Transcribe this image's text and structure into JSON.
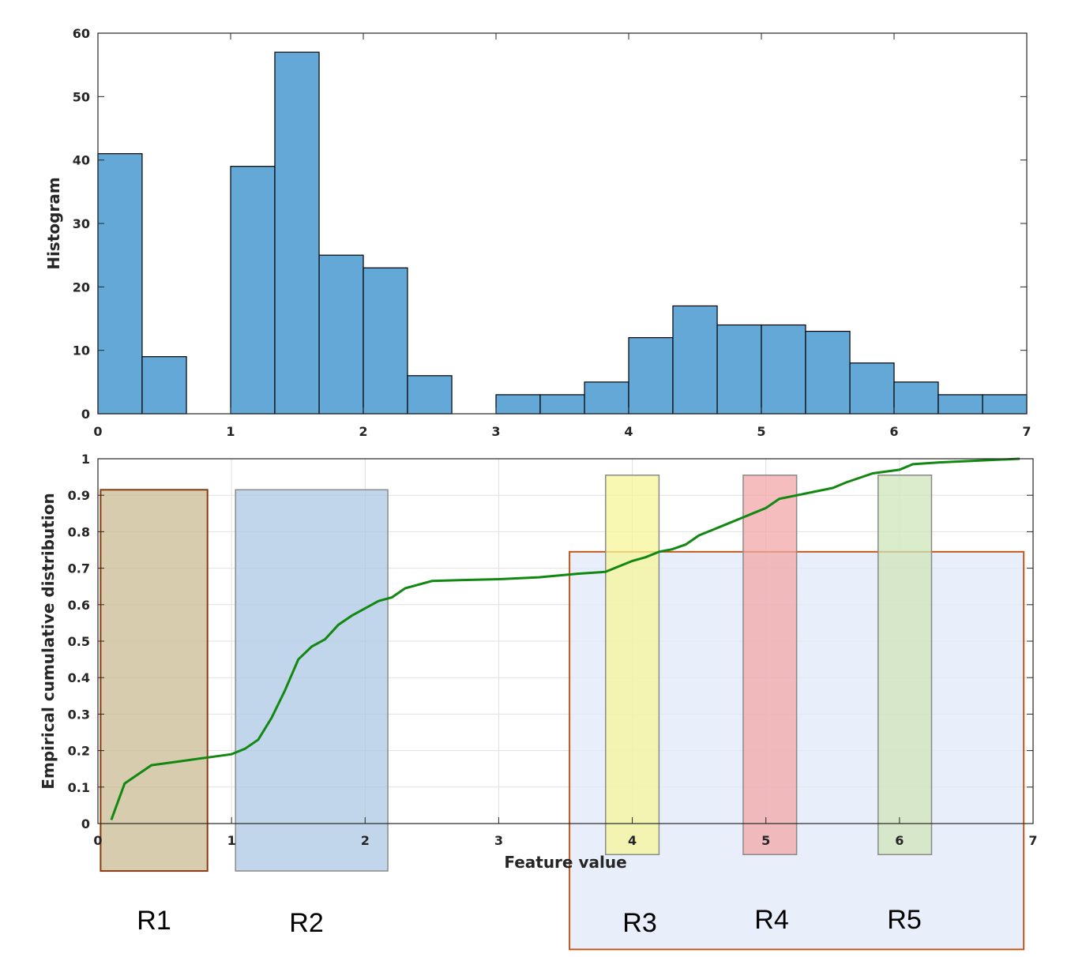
{
  "colors": {
    "bar_fill": "#64a8d7",
    "cdf_line": "#128812",
    "axis": "#262626",
    "grid": "#e0e0e0",
    "r1_fill": "#c8b98e",
    "r1_stroke": "#8b3a12",
    "r2_fill": "#aac6e3",
    "r3_fill": "#f5f59a",
    "r4_fill": "#f2a7a7",
    "r5_fill": "#cfe5b8",
    "big_box_fill": "#e3ebf8",
    "big_box_stroke": "#c0581c"
  },
  "chart_data": [
    {
      "type": "bar",
      "ylabel": "Histogram",
      "xlim": [
        0,
        7
      ],
      "ylim": [
        0,
        60
      ],
      "xticks": [
        0,
        1,
        2,
        3,
        4,
        5,
        6,
        7
      ],
      "yticks": [
        0,
        10,
        20,
        30,
        40,
        50,
        60
      ],
      "bin_edges": [
        0,
        0.333,
        0.667,
        1.0,
        1.333,
        1.667,
        2.0,
        2.333,
        2.667,
        3.0,
        3.333,
        3.667,
        4.0,
        4.333,
        4.667,
        5.0,
        5.333,
        5.667,
        6.0,
        6.333,
        6.667,
        7.0
      ],
      "values": [
        41,
        9,
        0,
        39,
        57,
        25,
        23,
        6,
        0,
        3,
        3,
        5,
        12,
        17,
        14,
        14,
        13,
        8,
        5,
        3,
        3
      ],
      "grid": false
    },
    {
      "type": "line",
      "xlabel": "Feature value",
      "ylabel": "Empirical cumulative distribution",
      "xlim": [
        0,
        7
      ],
      "ylim": [
        0,
        1
      ],
      "xticks": [
        0,
        1,
        2,
        3,
        4,
        5,
        6,
        7
      ],
      "yticks": [
        0,
        0.1,
        0.2,
        0.3,
        0.4,
        0.5,
        0.6,
        0.7,
        0.8,
        0.9,
        1
      ],
      "grid": true,
      "series": [
        {
          "x": [
            0.1,
            0.2,
            0.4,
            0.6,
            0.8,
            1.0,
            1.1,
            1.2,
            1.3,
            1.4,
            1.5,
            1.6,
            1.7,
            1.8,
            1.9,
            2.0,
            2.1,
            2.2,
            2.3,
            2.5,
            2.7,
            3.0,
            3.3,
            3.6,
            3.8,
            4.0,
            4.1,
            4.2,
            4.3,
            4.4,
            4.5,
            4.6,
            4.7,
            4.8,
            4.9,
            5.0,
            5.1,
            5.3,
            5.5,
            5.6,
            5.8,
            6.0,
            6.1,
            6.3,
            6.6,
            6.9
          ],
          "y": [
            0.01,
            0.11,
            0.16,
            0.17,
            0.18,
            0.19,
            0.205,
            0.23,
            0.29,
            0.365,
            0.45,
            0.485,
            0.505,
            0.545,
            0.57,
            0.59,
            0.61,
            0.62,
            0.645,
            0.665,
            0.667,
            0.67,
            0.675,
            0.685,
            0.69,
            0.72,
            0.73,
            0.745,
            0.752,
            0.765,
            0.79,
            0.805,
            0.82,
            0.835,
            0.85,
            0.865,
            0.89,
            0.905,
            0.92,
            0.935,
            0.96,
            0.97,
            0.985,
            0.99,
            0.995,
            1.0
          ]
        }
      ],
      "regions": [
        {
          "label": "R1",
          "x0": 0.02,
          "x1": 0.82,
          "y0": -0.13,
          "y1": 0.915,
          "fill_key": "r1_fill",
          "opacity": 0.72
        },
        {
          "label": "R2",
          "x0": 1.03,
          "x1": 2.17,
          "y0": -0.13,
          "y1": 0.915,
          "fill_key": "r2_fill",
          "opacity": 0.72
        },
        {
          "label": "R3",
          "x0": 3.8,
          "x1": 4.2,
          "y0": -0.085,
          "y1": 0.955,
          "fill_key": "r3_fill",
          "opacity": 0.75
        },
        {
          "label": "R4",
          "x0": 4.83,
          "x1": 5.23,
          "y0": -0.085,
          "y1": 0.955,
          "fill_key": "r4_fill",
          "opacity": 0.75
        },
        {
          "label": "R5",
          "x0": 5.84,
          "x1": 6.24,
          "y0": -0.085,
          "y1": 0.955,
          "fill_key": "r5_fill",
          "opacity": 0.75
        }
      ],
      "big_region": {
        "x0": 3.53,
        "x1": 6.93,
        "y0": -0.345,
        "y1": 0.745
      }
    }
  ]
}
